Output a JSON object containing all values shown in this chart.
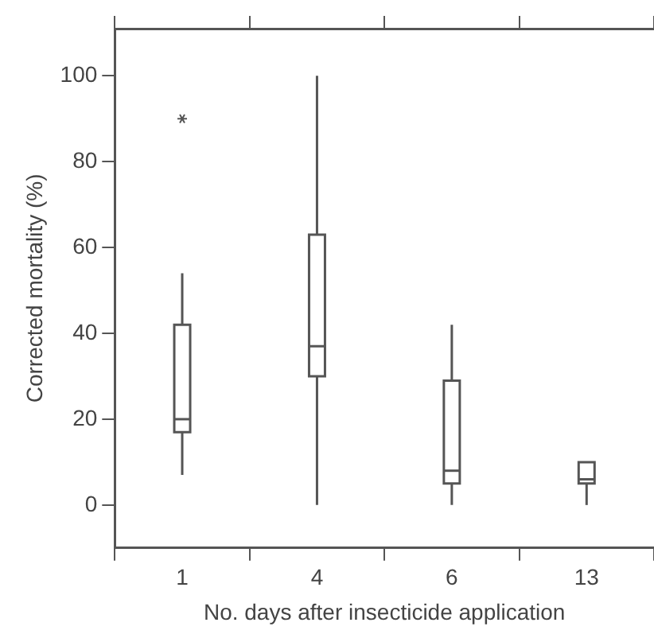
{
  "chart_data": {
    "type": "box",
    "xlabel": "No. days after insecticide application",
    "ylabel": "Corrected mortality (%)",
    "categories": [
      "1",
      "4",
      "6",
      "13"
    ],
    "boxes": [
      {
        "low": 7,
        "q1": 17,
        "median": 20,
        "q3": 42,
        "high": 54,
        "outliers": [
          90
        ]
      },
      {
        "low": 0,
        "q1": 30,
        "median": 37,
        "q3": 63,
        "high": 100
      },
      {
        "low": 0,
        "q1": 5,
        "median": 8,
        "q3": 29,
        "high": 42
      },
      {
        "low": 0,
        "q1": 5,
        "median": 6,
        "q3": 10,
        "high": 10
      }
    ],
    "color": "#555555",
    "ylim": [
      -10,
      111
    ],
    "yticks": [
      0,
      20,
      40,
      60,
      80,
      100
    ],
    "grid": false,
    "legend": false
  }
}
